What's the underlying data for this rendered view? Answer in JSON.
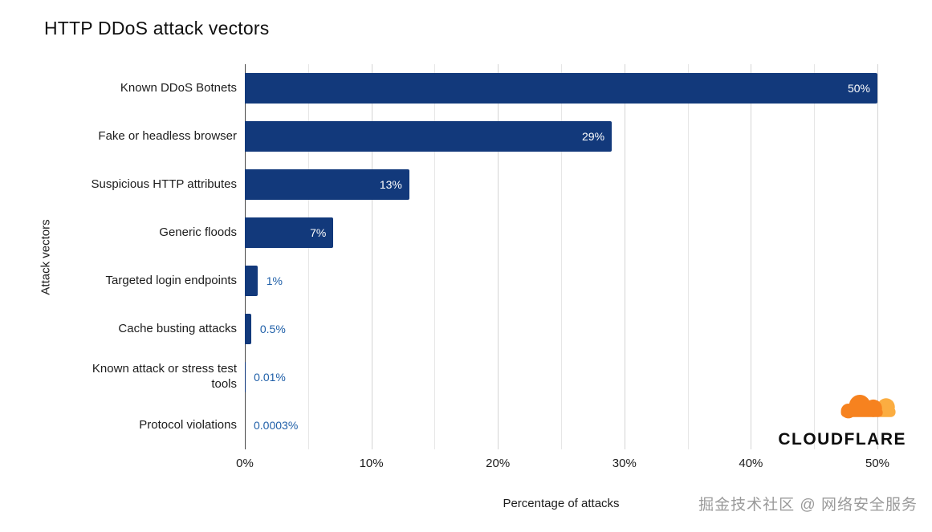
{
  "chart_data": {
    "type": "bar",
    "orientation": "horizontal",
    "title": "HTTP DDoS attack vectors",
    "xlabel": "Percentage of attacks",
    "ylabel": "Attack vectors",
    "categories": [
      "Known DDoS Botnets",
      "Fake or headless browser",
      "Suspicious HTTP attributes",
      "Generic floods",
      "Targeted login endpoints",
      "Cache busting attacks",
      "Known attack or stress test tools",
      "Protocol violations"
    ],
    "values": [
      50,
      29,
      13,
      7,
      1,
      0.5,
      0.01,
      0.0003
    ],
    "value_labels": [
      "50%",
      "29%",
      "13%",
      "7%",
      "1%",
      "0.5%",
      "0.01%",
      "0.0003%"
    ],
    "xlim": [
      0,
      50
    ],
    "x_ticks": [
      {
        "value": 0,
        "label": "0%"
      },
      {
        "value": 10,
        "label": "10%"
      },
      {
        "value": 20,
        "label": "20%"
      },
      {
        "value": 30,
        "label": "30%"
      },
      {
        "value": 40,
        "label": "40%"
      },
      {
        "value": 50,
        "label": "50%"
      }
    ],
    "grid_values": [
      0,
      5,
      10,
      15,
      20,
      25,
      30,
      35,
      40,
      45,
      50
    ],
    "major_step": 10,
    "grid": true,
    "legend": false,
    "inside_label_min": 5,
    "bar_color": "#12397B",
    "inside_label_color": "#ffffff",
    "outside_label_color": "#1f5fa8"
  },
  "branding": {
    "logo_text": "CLOUDFLARE",
    "cloud_color": "#F6821F",
    "cloud_shade_color": "#FBAD41"
  },
  "watermark": {
    "text": "掘金技术社区 @ 网络安全服务"
  }
}
